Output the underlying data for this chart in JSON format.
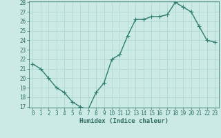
{
  "x": [
    0,
    1,
    2,
    3,
    4,
    5,
    6,
    7,
    8,
    9,
    10,
    11,
    12,
    13,
    14,
    15,
    16,
    17,
    18,
    19,
    20,
    21,
    22,
    23
  ],
  "y": [
    21.5,
    21.0,
    20.0,
    19.0,
    18.5,
    17.5,
    17.0,
    16.7,
    18.5,
    19.5,
    22.0,
    22.5,
    24.5,
    26.2,
    26.2,
    26.5,
    26.5,
    26.7,
    28.0,
    27.5,
    27.0,
    25.5,
    24.0,
    23.8
  ],
  "line_color": "#2e7d6e",
  "marker": "+",
  "marker_size": 4,
  "linewidth": 1.0,
  "xlabel": "Humidex (Indice chaleur)",
  "xlim": [
    -0.5,
    23.5
  ],
  "ylim": [
    17,
    28
  ],
  "yticks": [
    17,
    18,
    19,
    20,
    21,
    22,
    23,
    24,
    25,
    26,
    27,
    28
  ],
  "xtick_labels": [
    "0",
    "1",
    "2",
    "3",
    "4",
    "5",
    "6",
    "7",
    "8",
    "9",
    "10",
    "11",
    "12",
    "13",
    "14",
    "15",
    "16",
    "17",
    "18",
    "19",
    "20",
    "21",
    "22",
    "23"
  ],
  "bg_color": "#cceae5",
  "grid_color": "#aad4ce",
  "line_dark": "#2e6e63",
  "tick_fontsize": 5.5,
  "label_fontsize": 6.5
}
